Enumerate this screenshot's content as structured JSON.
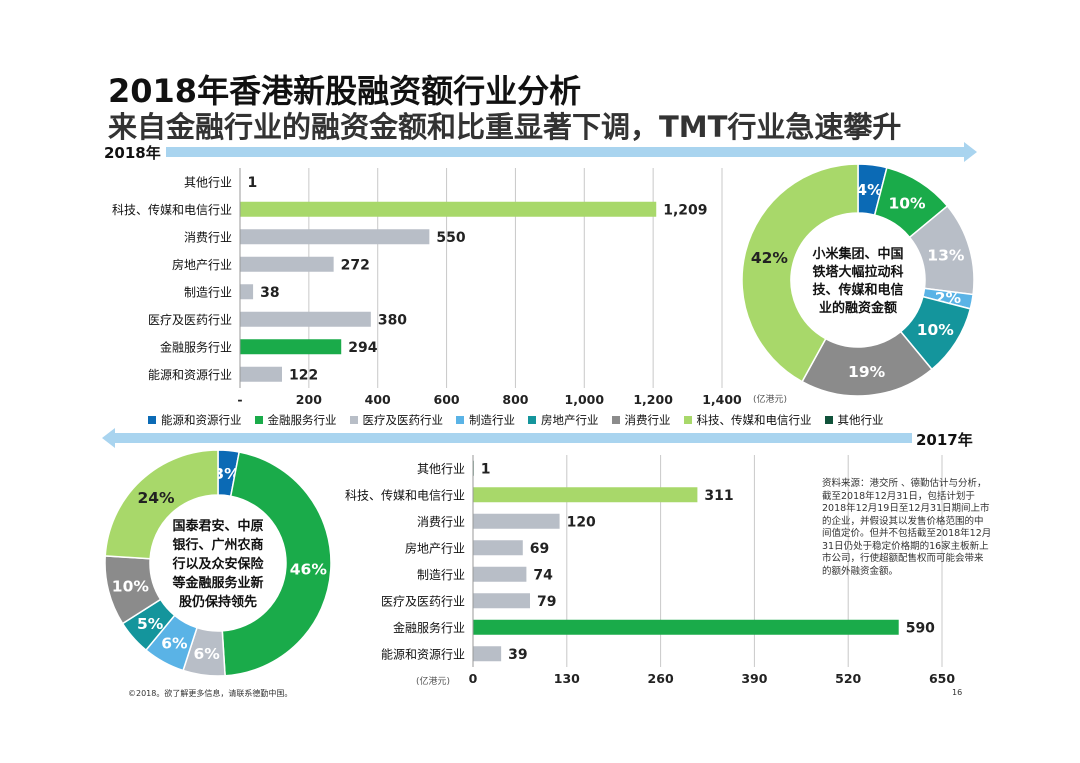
{
  "title": "2018年香港新股融资额行业分析",
  "subtitle": "来自金融行业的融资金额和比重显著下调，TMT行业急速攀升",
  "year_2018_label": "2018年",
  "year_2017_label": "2017年",
  "note": "资料来源：港交所 、德勤估计与分析，截至2018年12月31日，包括计划于2018年12月19日至12月31日期间上市的企业，并假设其以发售价格范围的中间值定价。但并不包括截至2018年12月31日仍处于稳定价格期的16家主板新上市公司，行使超额配售权而可能会带来的额外融资金额。",
  "footer": "©2018。欲了解更多信息，请联系德勤中国。",
  "page_number": "16",
  "colors": {
    "dark_blue": "#0b6ab5",
    "green": "#1aab4a",
    "light_gray": "#b8bec7",
    "light_blue": "#5ab3e6",
    "teal": "#14959c",
    "dark_gray": "#8b8b8b",
    "light_green": "#a8d86a",
    "dark_green": "#10523a",
    "arrow": "#a9d4ef"
  },
  "legend": [
    {
      "label": "能源和资源行业",
      "color": "#0b6ab5"
    },
    {
      "label": "金融服务行业",
      "color": "#1aab4a"
    },
    {
      "label": "医疗及医药行业",
      "color": "#b8bec7"
    },
    {
      "label": "制造行业",
      "color": "#5ab3e6"
    },
    {
      "label": "房地产行业",
      "color": "#14959c"
    },
    {
      "label": "消费行业",
      "color": "#8b8b8b"
    },
    {
      "label": "科技、传媒和电信行业",
      "color": "#a8d86a"
    },
    {
      "label": "其他行业",
      "color": "#10523a"
    }
  ],
  "chart_data": [
    {
      "type": "bar",
      "orientation": "horizontal",
      "title": "2018年",
      "categories": [
        "其他行业",
        "科技、传媒和电信行业",
        "消费行业",
        "房地产行业",
        "制造行业",
        "医疗及医药行业",
        "金融服务行业",
        "能源和资源行业"
      ],
      "values": [
        1,
        1209,
        550,
        272,
        38,
        380,
        294,
        122
      ],
      "value_labels": [
        "1",
        "1,209",
        "550",
        "272",
        "38",
        "380",
        "294",
        "122"
      ],
      "bar_colors": [
        "#10523a",
        "#a8d86a",
        "#b8bec7",
        "#b8bec7",
        "#b8bec7",
        "#b8bec7",
        "#1aab4a",
        "#b8bec7"
      ],
      "xlim": [
        0,
        1400
      ],
      "xticks": [
        "-",
        "200",
        "400",
        "600",
        "800",
        "1,000",
        "1,200",
        "1,400"
      ],
      "xtick_values": [
        0,
        200,
        400,
        600,
        800,
        1000,
        1200,
        1400
      ],
      "unit": "(亿港元)",
      "grid": true
    },
    {
      "type": "pie",
      "variant": "donut",
      "title": "2018年",
      "center_text": [
        "小米集团、中国",
        "铁塔大幅拉动科",
        "技、传媒和电信",
        "业的融资金额"
      ],
      "slices": [
        {
          "name": "能源和资源行业",
          "value": 4,
          "label": "4%",
          "color": "#0b6ab5"
        },
        {
          "name": "金融服务行业",
          "value": 10,
          "label": "10%",
          "color": "#1aab4a"
        },
        {
          "name": "医疗及医药行业",
          "value": 13,
          "label": "13%",
          "color": "#b8bec7"
        },
        {
          "name": "制造行业",
          "value": 2,
          "label": "2%",
          "color": "#5ab3e6"
        },
        {
          "name": "房地产行业",
          "value": 10,
          "label": "10%",
          "color": "#14959c"
        },
        {
          "name": "消费行业",
          "value": 19,
          "label": "19%",
          "color": "#8b8b8b"
        },
        {
          "name": "科技、传媒和电信行业",
          "value": 42,
          "label": "42%",
          "color": "#a8d86a"
        }
      ]
    },
    {
      "type": "pie",
      "variant": "donut",
      "title": "2017年",
      "center_text": [
        "国泰君安、中原",
        "银行、广州农商",
        "行以及众安保险",
        "等金融服务业新",
        "股仍保持领先"
      ],
      "slices": [
        {
          "name": "能源和资源行业",
          "value": 3,
          "label": "3%",
          "color": "#0b6ab5"
        },
        {
          "name": "金融服务行业",
          "value": 46,
          "label": "46%",
          "color": "#1aab4a"
        },
        {
          "name": "医疗及医药行业",
          "value": 6,
          "label": "6%",
          "color": "#b8bec7"
        },
        {
          "name": "制造行业",
          "value": 6,
          "label": "6%",
          "color": "#5ab3e6"
        },
        {
          "name": "房地产行业",
          "value": 5,
          "label": "5%",
          "color": "#14959c"
        },
        {
          "name": "消费行业",
          "value": 10,
          "label": "10%",
          "color": "#8b8b8b"
        },
        {
          "name": "科技、传媒和电信行业",
          "value": 24,
          "label": "24%",
          "color": "#a8d86a"
        }
      ]
    },
    {
      "type": "bar",
      "orientation": "horizontal",
      "title": "2017年",
      "categories": [
        "其他行业",
        "科技、传媒和电信行业",
        "消费行业",
        "房地产行业",
        "制造行业",
        "医疗及医药行业",
        "金融服务行业",
        "能源和资源行业"
      ],
      "values": [
        1,
        311,
        120,
        69,
        74,
        79,
        590,
        39
      ],
      "value_labels": [
        "1",
        "311",
        "120",
        "69",
        "74",
        "79",
        "590",
        "39"
      ],
      "bar_colors": [
        "#10523a",
        "#a8d86a",
        "#b8bec7",
        "#b8bec7",
        "#b8bec7",
        "#b8bec7",
        "#1aab4a",
        "#b8bec7"
      ],
      "xlim": [
        0,
        650
      ],
      "xticks": [
        "0",
        "130",
        "260",
        "390",
        "520",
        "650"
      ],
      "xtick_values": [
        0,
        130,
        260,
        390,
        520,
        650
      ],
      "unit": "(亿港元)",
      "grid": true
    }
  ]
}
